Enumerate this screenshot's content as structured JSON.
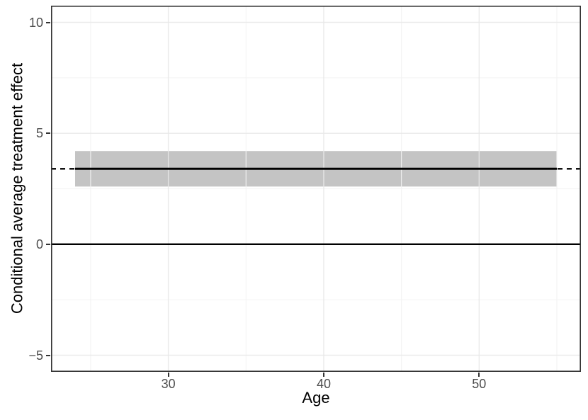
{
  "chart_data": {
    "type": "line",
    "title": "",
    "xlabel": "Age",
    "ylabel": "Conditional average treatment effect",
    "xlim": [
      22.45,
      56.55
    ],
    "ylim": [
      -5.75,
      10.75
    ],
    "grid": true,
    "legend": "none",
    "x_major_ticks": [
      30,
      40,
      50
    ],
    "x_tick_labels": [
      "30",
      "40",
      "50"
    ],
    "x_minor_ticks": [
      25,
      35,
      45,
      55
    ],
    "y_major_ticks": [
      -5,
      0,
      5,
      10
    ],
    "y_tick_labels": [
      "−5",
      "0",
      "5",
      "10"
    ],
    "y_minor_ticks": [
      -2.5,
      2.5,
      7.5
    ],
    "series": [
      {
        "name": "cate-estimate",
        "type": "line_with_ribbon",
        "style": "solid",
        "x": [
          24,
          55
        ],
        "y": [
          3.4,
          3.4
        ],
        "ci_lower": [
          2.6,
          2.6
        ],
        "ci_upper": [
          4.2,
          4.2
        ],
        "color": "#000000",
        "ribbon_color": "#c4c4c4"
      },
      {
        "name": "ate-reference-line",
        "type": "hline",
        "style": "dashed",
        "y": 3.4,
        "x": [
          22.45,
          56.55
        ],
        "color": "#000000"
      },
      {
        "name": "zero-line",
        "type": "hline",
        "style": "solid",
        "y": 0,
        "x": [
          22.45,
          56.55
        ],
        "color": "#000000"
      }
    ],
    "colors": {
      "background": "#ffffff",
      "panel_background": "#ffffff",
      "panel_border": "#333333",
      "grid_major": "#e8e8e8",
      "grid_minor": "#f3f3f3",
      "tick_mark": "#333333",
      "tick_label": "#4d4d4d",
      "axis_title": "#000000"
    }
  }
}
